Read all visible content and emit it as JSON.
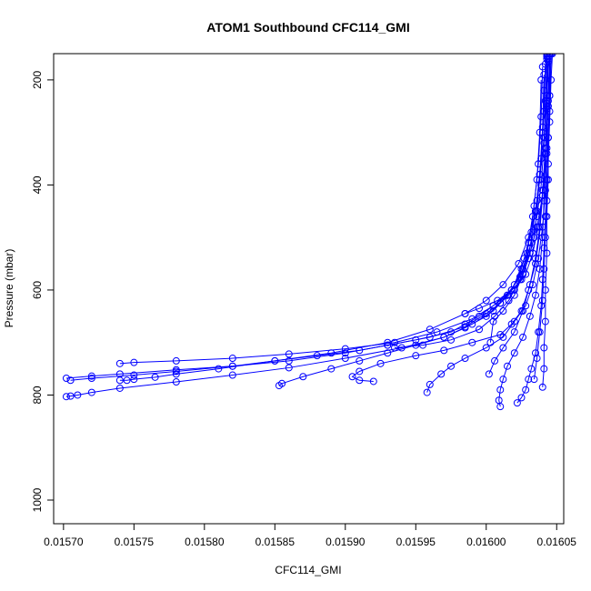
{
  "chart_data": {
    "type": "line",
    "title": "ATOM1 Southbound CFC114_GMI",
    "xlabel": "CFC114_GMI",
    "ylabel": "Pressure (mbar)",
    "xlim": [
      0.015693,
      0.016055
    ],
    "ylim": [
      1045,
      150
    ],
    "y_reversed": true,
    "x_ticks": [
      0.0157,
      0.01575,
      0.0158,
      0.01585,
      0.0159,
      0.01595,
      0.016,
      0.01605
    ],
    "x_tick_labels": [
      "0.01570",
      "0.01575",
      "0.01580",
      "0.01585",
      "0.01590",
      "0.01595",
      "0.01600",
      "0.01605"
    ],
    "y_ticks": [
      200,
      400,
      600,
      800,
      1000
    ],
    "y_tick_labels": [
      "200",
      "400",
      "600",
      "800",
      "1000"
    ],
    "grid": false,
    "legend": "none",
    "color": "#0000ff",
    "marker": "open-circle",
    "series": [
      {
        "x": [
          0.016043,
          0.016041,
          0.01604,
          0.016038,
          0.016036,
          0.016034,
          0.01603,
          0.016025,
          0.016015,
          0.016005,
          0.015995,
          0.015985,
          0.015975,
          0.01595,
          0.01593,
          0.01591,
          0.01588,
          0.01585,
          0.01582,
          0.01578,
          0.01575,
          0.01572,
          0.015705
        ],
        "y": [
          150,
          220,
          300,
          380,
          450,
          500,
          540,
          580,
          610,
          630,
          650,
          665,
          680,
          695,
          705,
          715,
          725,
          735,
          745,
          755,
          762,
          768,
          772
        ]
      },
      {
        "x": [
          0.016045,
          0.016044,
          0.016042,
          0.01604,
          0.016037,
          0.016033,
          0.016028,
          0.01602,
          0.01601,
          0.016,
          0.015985,
          0.01596,
          0.01593,
          0.0159,
          0.01586,
          0.01582,
          0.01578,
          0.01574,
          0.01572,
          0.015702
        ],
        "y": [
          150,
          250,
          330,
          420,
          480,
          530,
          570,
          600,
          625,
          645,
          670,
          690,
          705,
          720,
          735,
          745,
          752,
          760,
          764,
          768
        ]
      },
      {
        "x": [
          0.016043,
          0.016042,
          0.016041,
          0.016039,
          0.016036,
          0.016032,
          0.016026,
          0.016018,
          0.016005,
          0.01599,
          0.015965,
          0.015935,
          0.0159,
          0.01586,
          0.01582,
          0.01578,
          0.01575,
          0.01574
        ],
        "y": [
          160,
          240,
          320,
          400,
          460,
          510,
          560,
          600,
          630,
          655,
          680,
          700,
          712,
          722,
          730,
          735,
          738,
          740
        ]
      },
      {
        "x": [
          0.016044,
          0.016043,
          0.016041,
          0.016038,
          0.016035,
          0.01603,
          0.016023,
          0.016012,
          0.016,
          0.015985,
          0.01596,
          0.01593,
          0.01589,
          0.01585,
          0.01581,
          0.01578,
          0.015765,
          0.01575,
          0.015745,
          0.01574
        ],
        "y": [
          155,
          230,
          310,
          390,
          450,
          500,
          550,
          590,
          620,
          645,
          675,
          700,
          720,
          735,
          750,
          760,
          766,
          770,
          772,
          772
        ]
      },
      {
        "x": [
          0.016046,
          0.016045,
          0.016043,
          0.01604,
          0.016036,
          0.016031,
          0.016024,
          0.016015,
          0.016005,
          0.01599,
          0.01597,
          0.01594,
          0.0159,
          0.01586,
          0.01582,
          0.01578,
          0.01574,
          0.01572,
          0.01571,
          0.015705,
          0.015702
        ],
        "y": [
          150,
          260,
          340,
          420,
          480,
          530,
          575,
          610,
          640,
          665,
          690,
          710,
          730,
          748,
          762,
          775,
          787,
          795,
          800,
          802,
          803
        ]
      },
      {
        "x": [
          0.016042,
          0.016041,
          0.016039,
          0.016036,
          0.016032,
          0.016027,
          0.01602,
          0.01601,
          0.016,
          0.015985,
          0.01597,
          0.01595,
          0.01593,
          0.01591,
          0.01589,
          0.01587,
          0.015855,
          0.015853
        ],
        "y": [
          170,
          260,
          350,
          430,
          490,
          540,
          590,
          625,
          650,
          672,
          690,
          705,
          720,
          735,
          750,
          765,
          778,
          782
        ]
      },
      {
        "x": [
          0.016044,
          0.016043,
          0.016042,
          0.01604,
          0.016038,
          0.016035,
          0.01603,
          0.016025,
          0.016018,
          0.01601,
          0.01599,
          0.01597,
          0.01595,
          0.015925,
          0.01591,
          0.015905,
          0.01591,
          0.01592
        ],
        "y": [
          165,
          255,
          340,
          420,
          490,
          550,
          600,
          640,
          665,
          685,
          700,
          715,
          725,
          740,
          755,
          765,
          772,
          774
        ]
      },
      {
        "x": [
          0.016045,
          0.016044,
          0.016043,
          0.016042,
          0.01604,
          0.016037,
          0.016033,
          0.016028,
          0.01602,
          0.016012,
          0.016,
          0.015985,
          0.015975,
          0.015968,
          0.01596,
          0.015958
        ],
        "y": [
          150,
          240,
          330,
          410,
          480,
          540,
          590,
          630,
          660,
          690,
          710,
          730,
          745,
          760,
          780,
          795
        ]
      },
      {
        "x": [
          0.016043,
          0.016043,
          0.016042,
          0.016041,
          0.01604,
          0.016038,
          0.016035,
          0.016031,
          0.016026,
          0.01602,
          0.016015,
          0.016012,
          0.01601,
          0.016009,
          0.01601
        ],
        "y": [
          155,
          250,
          340,
          430,
          500,
          560,
          610,
          650,
          690,
          720,
          745,
          770,
          790,
          810,
          822
        ]
      },
      {
        "x": [
          0.016046,
          0.016045,
          0.016044,
          0.016043,
          0.016042,
          0.016041,
          0.01604,
          0.016039,
          0.016037,
          0.016035,
          0.016032,
          0.01603,
          0.016028,
          0.016025,
          0.016022
        ],
        "y": [
          150,
          230,
          310,
          390,
          460,
          520,
          580,
          630,
          680,
          720,
          750,
          770,
          790,
          805,
          815
        ]
      },
      {
        "x": [
          0.016045,
          0.016045,
          0.016044,
          0.016044,
          0.016043,
          0.016043,
          0.016042,
          0.016042,
          0.016041,
          0.016041,
          0.01604
        ],
        "y": [
          150,
          230,
          310,
          390,
          460,
          530,
          600,
          660,
          710,
          750,
          785
        ]
      },
      {
        "x": [
          0.01604,
          0.016039,
          0.016037,
          0.016034,
          0.01603,
          0.016025,
          0.016018,
          0.016008,
          0.015995,
          0.015985
        ],
        "y": [
          175,
          270,
          360,
          440,
          510,
          560,
          600,
          620,
          635,
          645
        ]
      },
      {
        "x": [
          0.016041,
          0.01604,
          0.016038,
          0.016035,
          0.016031,
          0.016026,
          0.01602,
          0.016012,
          0.016005,
          0.016003
        ],
        "y": [
          190,
          290,
          380,
          450,
          520,
          570,
          610,
          640,
          660,
          700
        ]
      },
      {
        "x": [
          0.016047,
          0.016046,
          0.016045,
          0.016044,
          0.016043,
          0.016042,
          0.016041,
          0.01604,
          0.016038,
          0.016036,
          0.016034
        ],
        "y": [
          150,
          200,
          280,
          360,
          430,
          500,
          560,
          620,
          680,
          730,
          770
        ]
      },
      {
        "x": [
          0.016039,
          0.016038,
          0.016036,
          0.016033,
          0.016029,
          0.016024,
          0.016016,
          0.016006,
          0.015995,
          0.015975,
          0.015955,
          0.015935
        ],
        "y": [
          200,
          300,
          390,
          460,
          530,
          580,
          620,
          650,
          675,
          695,
          705,
          710
        ]
      },
      {
        "x": [
          0.016044,
          0.016043,
          0.016042,
          0.01604,
          0.016038,
          0.016035,
          0.016031,
          0.016026,
          0.01602,
          0.016012,
          0.016006,
          0.016002
        ],
        "y": [
          160,
          245,
          330,
          410,
          480,
          540,
          590,
          640,
          680,
          710,
          735,
          760
        ]
      }
    ]
  }
}
